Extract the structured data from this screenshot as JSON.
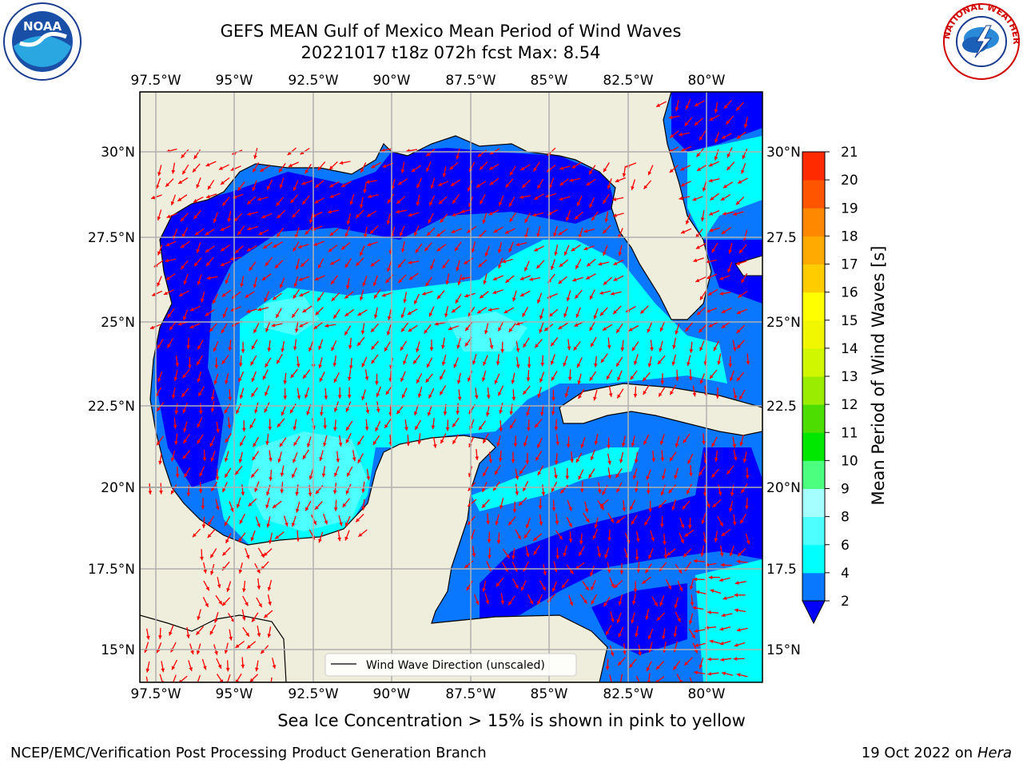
{
  "header": {
    "title_line1": "GEFS MEAN Gulf of Mexico Mean Period of Wind Waves",
    "title_line2": "20221017 t18z 072h fcst   Max: 8.54"
  },
  "logos": {
    "noaa": {
      "text": "NOAA",
      "ring_text": "NATIONAL OCEANIC AND ATMOSPHERIC ADMINISTRATION · U.S. DEPARTMENT OF COMMERCE"
    },
    "nws": {
      "ring_text": "NATIONAL WEATHER SERVICE"
    }
  },
  "map": {
    "lon_ticks": [
      "97.5°W",
      "95°W",
      "92.5°W",
      "90°W",
      "87.5°W",
      "85°W",
      "82.5°W",
      "80°W"
    ],
    "lat_ticks_left": [
      "30°N",
      "27.5°N",
      "25°N",
      "22.5°N",
      "20°N",
      "17.5°N",
      "15°N"
    ],
    "lat_ticks_right": [
      "30°N",
      "27.5",
      "25°N",
      "22.5",
      "20°N",
      "17.5",
      "15°N"
    ],
    "legend_label": "Wind Wave Direction (unscaled)",
    "colors": {
      "land": "#efeddc",
      "water_blue": "#0a77ff",
      "water_dark": "#0000ff",
      "water_cyan": "#00ffff",
      "water_lightcyan": "#4dffff",
      "arrow": "#ff0000",
      "grid": "#b0b0b0"
    }
  },
  "colorbar": {
    "label": "Mean Period of Wind Waves [s]",
    "ticks": [
      "2",
      "4",
      "6",
      "8",
      "9",
      "10",
      "11",
      "12",
      "13",
      "14",
      "15",
      "16",
      "17",
      "18",
      "19",
      "20",
      "21"
    ],
    "colors": [
      "#0a77ff",
      "#00ffff",
      "#4dffff",
      "#a6ffff",
      "#4dff7f",
      "#00e800",
      "#4ddd00",
      "#9bed00",
      "#d0f700",
      "#f0f700",
      "#ffff00",
      "#ffcc00",
      "#ffaa00",
      "#ff8800",
      "#ff5500",
      "#ff2a00"
    ],
    "under_color": "#0000ff"
  },
  "footer": {
    "subnote": "Sea Ice Concentration > 15% is shown in pink to yellow",
    "left": "NCEP/EMC/Verification Post Processing Product Generation Branch",
    "date": "19 Oct 2022 on",
    "host": "Hera"
  }
}
